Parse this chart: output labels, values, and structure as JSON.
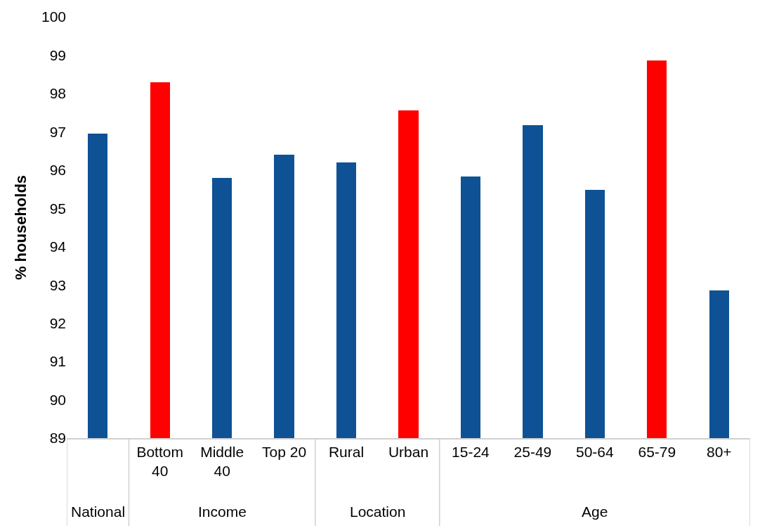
{
  "chart_data": {
    "type": "bar",
    "ylabel": "% households",
    "categories": [
      null,
      "Bottom 40",
      "Middle 40",
      "Top 20",
      "Rural",
      "Urban",
      "15-24",
      "25-49",
      "50-64",
      "65-79",
      "80+"
    ],
    "values": [
      96.96,
      98.29,
      95.79,
      96.4,
      96.2,
      97.56,
      95.84,
      97.18,
      95.49,
      98.86,
      92.85
    ],
    "colors": [
      "#0e5295",
      "#ff0000",
      "#0e5295",
      "#0e5295",
      "#0e5295",
      "#ff0000",
      "#0e5295",
      "#0e5295",
      "#0e5295",
      "#ff0000",
      "#0e5295"
    ],
    "ylim": [
      89,
      100
    ],
    "yticks": [
      89,
      90,
      91,
      92,
      93,
      94,
      95,
      96,
      97,
      98,
      99,
      100
    ],
    "annotations": [
      "National",
      "Income",
      "Location",
      "Age"
    ],
    "legend": false
  }
}
